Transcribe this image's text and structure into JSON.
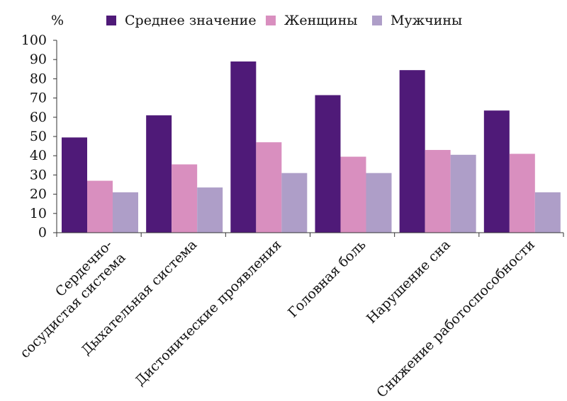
{
  "chart_data": {
    "type": "bar",
    "ylabel": "%",
    "ylim": [
      0,
      100
    ],
    "yticks": [
      0,
      10,
      20,
      30,
      40,
      50,
      60,
      70,
      80,
      90,
      100
    ],
    "legend_position": "top",
    "grid": false,
    "categories": [
      "Сердечно-\nсосудистая система",
      "Дыхательная система",
      "Дистонические проявления",
      "Головная боль",
      "Нарушение сна",
      "Снижение работоспособности"
    ],
    "series": [
      {
        "name": "Среднее значение",
        "color": "#4f1a78",
        "values": [
          49.5,
          61,
          89,
          71.5,
          84.5,
          63.5
        ]
      },
      {
        "name": "Женщины",
        "color": "#d98fbf",
        "values": [
          27,
          35.5,
          47,
          39.5,
          43,
          41
        ]
      },
      {
        "name": "Мужчины",
        "color": "#ae9ec8",
        "values": [
          21,
          23.5,
          31,
          31,
          40.5,
          21
        ]
      }
    ]
  }
}
